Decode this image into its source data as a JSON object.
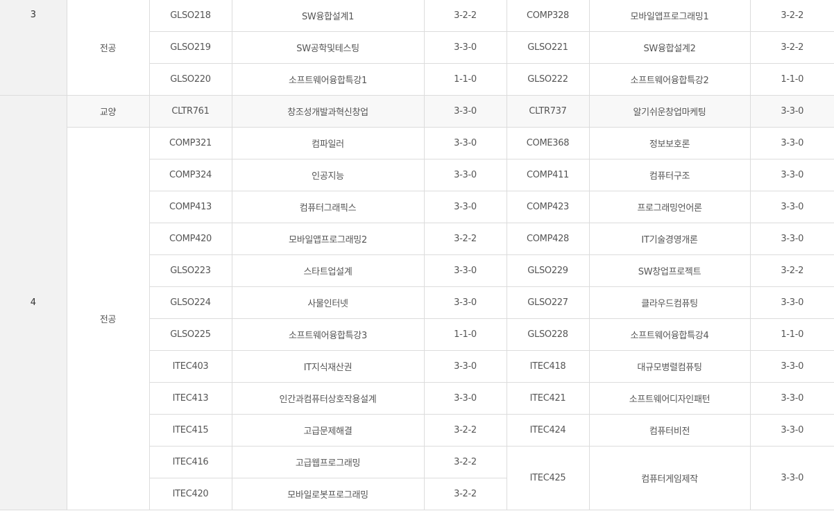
{
  "year3": {
    "year": "3",
    "category": "전공",
    "rows": [
      {
        "c1": "GLSO218",
        "n1": "SW융합설계1",
        "u1": "3-2-2",
        "c2": "COMP328",
        "n2": "모바일앱프로그래밍1",
        "u2": "3-2-2"
      },
      {
        "c1": "GLSO219",
        "n1": "SW공학및테스팅",
        "u1": "3-3-0",
        "c2": "GLSO221",
        "n2": "SW융합설계2",
        "u2": "3-2-2"
      },
      {
        "c1": "GLSO220",
        "n1": "소프트웨어융합특강1",
        "u1": "1-1-0",
        "c2": "GLSO222",
        "n2": "소프트웨어융합특강2",
        "u2": "1-1-0"
      }
    ]
  },
  "year4": {
    "year": "4",
    "liberal": {
      "category": "교양",
      "row": {
        "c1": "CLTR761",
        "n1": "창조성개발과혁신창업",
        "u1": "3-3-0",
        "c2": "CLTR737",
        "n2": "알기쉬운창업마케팅",
        "u2": "3-3-0"
      }
    },
    "major": {
      "category": "전공",
      "rows": [
        {
          "c1": "COMP321",
          "n1": "컴파일러",
          "u1": "3-3-0",
          "c2": "COME368",
          "n2": "정보보호론",
          "u2": "3-3-0"
        },
        {
          "c1": "COMP324",
          "n1": "인공지능",
          "u1": "3-3-0",
          "c2": "COMP411",
          "n2": "컴퓨터구조",
          "u2": "3-3-0"
        },
        {
          "c1": "COMP413",
          "n1": "컴퓨터그래픽스",
          "u1": "3-3-0",
          "c2": "COMP423",
          "n2": "프로그래밍언어론",
          "u2": "3-3-0"
        },
        {
          "c1": "COMP420",
          "n1": "모바일앱프로그래밍2",
          "u1": "3-2-2",
          "c2": "COMP428",
          "n2": "IT기술경영개론",
          "u2": "3-3-0"
        },
        {
          "c1": "GLSO223",
          "n1": "스타트업설계",
          "u1": "3-3-0",
          "c2": "GLSO229",
          "n2": "SW창업프로젝트",
          "u2": "3-2-2"
        },
        {
          "c1": "GLSO224",
          "n1": "사물인터넷",
          "u1": "3-3-0",
          "c2": "GLSO227",
          "n2": "클라우드컴퓨팅",
          "u2": "3-3-0"
        },
        {
          "c1": "GLSO225",
          "n1": "소프트웨어융합특강3",
          "u1": "1-1-0",
          "c2": "GLSO228",
          "n2": "소프트웨어융합특강4",
          "u2": "1-1-0"
        },
        {
          "c1": "ITEC403",
          "n1": "IT지식재산권",
          "u1": "3-3-0",
          "c2": "ITEC418",
          "n2": "대규모병렬컴퓨팅",
          "u2": "3-3-0"
        },
        {
          "c1": "ITEC413",
          "n1": "인간과컴퓨터상호작용설계",
          "u1": "3-3-0",
          "c2": "ITEC421",
          "n2": "소프트웨어디자인패턴",
          "u2": "3-3-0"
        },
        {
          "c1": "ITEC415",
          "n1": "고급문제해결",
          "u1": "3-2-2",
          "c2": "ITEC424",
          "n2": "컴퓨터비전",
          "u2": "3-3-0"
        }
      ],
      "tail": {
        "left": [
          {
            "c1": "ITEC416",
            "n1": "고급웹프로그래밍",
            "u1": "3-2-2"
          },
          {
            "c1": "ITEC420",
            "n1": "모바일로봇프로그래밍",
            "u1": "3-2-2"
          }
        ],
        "right": {
          "c2": "ITEC425",
          "n2": "컴퓨터게임제작",
          "u2": "3-3-0"
        }
      }
    }
  }
}
